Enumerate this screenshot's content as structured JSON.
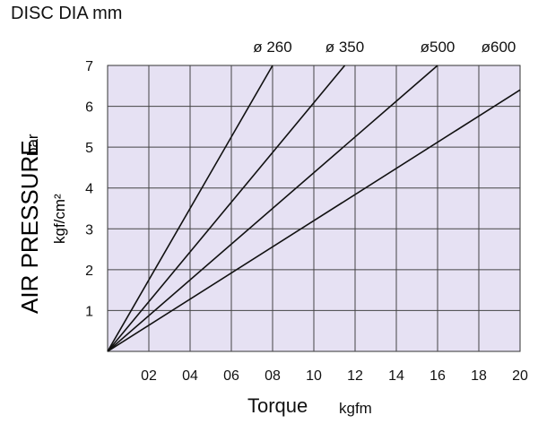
{
  "chart_data": {
    "type": "line",
    "title": "DISC DIA mm",
    "xlabel": "Torque",
    "xlabel_unit": "kgfm",
    "ylabel": "AIR PRESSURE",
    "ylabel_unit": "bar",
    "ylabel_unit2": "kgf/cm²",
    "xlim": [
      0,
      20
    ],
    "ylim": [
      0,
      7
    ],
    "x_ticks": [
      "02",
      "04",
      "06",
      "08",
      "10",
      "12",
      "14",
      "16",
      "18",
      "20"
    ],
    "y_ticks": [
      "1",
      "2",
      "3",
      "4",
      "5",
      "6",
      "7"
    ],
    "grid": true,
    "background": "#e6e1f3",
    "series": [
      {
        "name": "ø 260",
        "points": [
          [
            0,
            0
          ],
          [
            8,
            7
          ]
        ]
      },
      {
        "name": "ø 350",
        "points": [
          [
            0,
            0
          ],
          [
            11.5,
            7
          ]
        ]
      },
      {
        "name": "ø500",
        "points": [
          [
            0,
            0
          ],
          [
            16,
            7
          ]
        ]
      },
      {
        "name": "ø600",
        "points": [
          [
            0,
            0
          ],
          [
            20,
            6.4
          ]
        ]
      }
    ]
  }
}
